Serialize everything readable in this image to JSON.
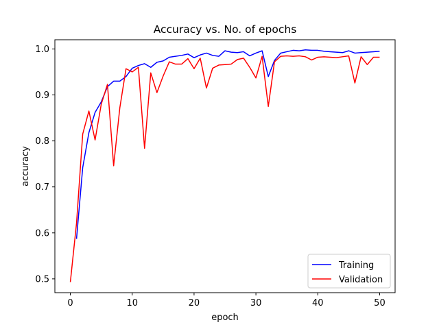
{
  "chart_data": {
    "type": "line",
    "title": "Accuracy vs. No. of epochs",
    "xlabel": "epoch",
    "ylabel": "accuracy",
    "xlim": [
      -2.5,
      52.5
    ],
    "ylim": [
      0.47,
      1.02
    ],
    "xticks": [
      0,
      10,
      20,
      30,
      40,
      50
    ],
    "yticks": [
      0.5,
      0.6,
      0.7,
      0.8,
      0.9,
      1.0
    ],
    "xtick_labels": [
      "0",
      "10",
      "20",
      "30",
      "40",
      "50"
    ],
    "ytick_labels": [
      "0.5",
      "0.6",
      "0.7",
      "0.8",
      "0.9",
      "1.0"
    ],
    "grid": false,
    "legend_position": "lower-right",
    "series": [
      {
        "name": "Training",
        "color": "#0000ff",
        "x": [
          1,
          2,
          3,
          4,
          5,
          6,
          7,
          8,
          9,
          10,
          11,
          12,
          13,
          14,
          15,
          16,
          17,
          18,
          19,
          20,
          21,
          22,
          23,
          24,
          25,
          26,
          27,
          28,
          29,
          30,
          31,
          32,
          33,
          34,
          35,
          36,
          37,
          38,
          39,
          40,
          41,
          42,
          43,
          44,
          45,
          46,
          47,
          48,
          49,
          50
        ],
        "values": [
          0.587,
          0.742,
          0.818,
          0.862,
          0.885,
          0.918,
          0.93,
          0.93,
          0.94,
          0.958,
          0.964,
          0.968,
          0.96,
          0.971,
          0.974,
          0.982,
          0.984,
          0.986,
          0.989,
          0.981,
          0.987,
          0.991,
          0.986,
          0.984,
          0.996,
          0.993,
          0.992,
          0.994,
          0.985,
          0.991,
          0.996,
          0.94,
          0.975,
          0.991,
          0.994,
          0.997,
          0.996,
          0.998,
          0.997,
          0.997,
          0.995,
          0.994,
          0.993,
          0.992,
          0.996,
          0.991,
          0.992,
          0.993,
          0.994,
          0.995
        ]
      },
      {
        "name": "Validation",
        "color": "#ff0000",
        "x": [
          0,
          1,
          2,
          3,
          4,
          5,
          6,
          7,
          8,
          9,
          10,
          11,
          12,
          13,
          14,
          15,
          16,
          17,
          18,
          19,
          20,
          21,
          22,
          23,
          24,
          25,
          26,
          27,
          28,
          29,
          30,
          31,
          32,
          33,
          34,
          35,
          36,
          37,
          38,
          39,
          40,
          41,
          42,
          43,
          44,
          45,
          46,
          47,
          48,
          49,
          50
        ],
        "values": [
          0.493,
          0.621,
          0.815,
          0.865,
          0.802,
          0.88,
          0.923,
          0.746,
          0.872,
          0.957,
          0.95,
          0.96,
          0.784,
          0.948,
          0.905,
          0.941,
          0.972,
          0.967,
          0.967,
          0.979,
          0.957,
          0.98,
          0.915,
          0.958,
          0.965,
          0.966,
          0.967,
          0.977,
          0.98,
          0.96,
          0.937,
          0.984,
          0.875,
          0.972,
          0.984,
          0.985,
          0.984,
          0.985,
          0.983,
          0.976,
          0.982,
          0.983,
          0.982,
          0.981,
          0.983,
          0.985,
          0.926,
          0.983,
          0.966,
          0.982,
          0.982
        ]
      }
    ]
  }
}
